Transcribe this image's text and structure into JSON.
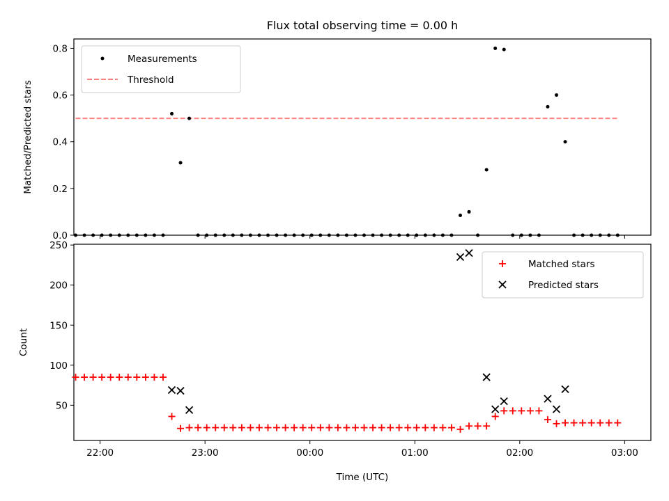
{
  "chart_data": [
    {
      "type": "scatter",
      "title": "Flux total observing time = 0.00 h",
      "xlabel": "",
      "ylabel": "Matched/Predicted stars",
      "xlim": [
        "21:45",
        "03:15"
      ],
      "ylim": [
        0,
        0.84
      ],
      "yticks": [
        0.0,
        0.2,
        0.4,
        0.6,
        0.8
      ],
      "ytick_labels": [
        "0.0",
        "0.2",
        "0.4",
        "0.6",
        "0.8"
      ],
      "legend": {
        "position": "top-left",
        "entries": [
          "Measurements",
          "Threshold"
        ]
      },
      "colors": {
        "measurements": "#000000",
        "threshold": "#ff7f7f"
      },
      "series": [
        {
          "name": "Measurements",
          "points": [
            {
              "x": "21:46",
              "y": 0
            },
            {
              "x": "21:51",
              "y": 0
            },
            {
              "x": "21:56",
              "y": 0
            },
            {
              "x": "22:01",
              "y": 0
            },
            {
              "x": "22:06",
              "y": 0
            },
            {
              "x": "22:11",
              "y": 0
            },
            {
              "x": "22:16",
              "y": 0
            },
            {
              "x": "22:21",
              "y": 0
            },
            {
              "x": "22:26",
              "y": 0
            },
            {
              "x": "22:31",
              "y": 0
            },
            {
              "x": "22:36",
              "y": 0
            },
            {
              "x": "22:41",
              "y": 0.52
            },
            {
              "x": "22:46",
              "y": 0.31
            },
            {
              "x": "22:51",
              "y": 0.5
            },
            {
              "x": "22:56",
              "y": 0
            },
            {
              "x": "23:01",
              "y": 0
            },
            {
              "x": "23:06",
              "y": 0
            },
            {
              "x": "23:11",
              "y": 0
            },
            {
              "x": "23:16",
              "y": 0
            },
            {
              "x": "23:21",
              "y": 0
            },
            {
              "x": "23:26",
              "y": 0
            },
            {
              "x": "23:31",
              "y": 0
            },
            {
              "x": "23:36",
              "y": 0
            },
            {
              "x": "23:41",
              "y": 0
            },
            {
              "x": "23:46",
              "y": 0
            },
            {
              "x": "23:51",
              "y": 0
            },
            {
              "x": "23:56",
              "y": 0
            },
            {
              "x": "00:01",
              "y": 0
            },
            {
              "x": "00:06",
              "y": 0
            },
            {
              "x": "00:11",
              "y": 0
            },
            {
              "x": "00:16",
              "y": 0
            },
            {
              "x": "00:21",
              "y": 0
            },
            {
              "x": "00:26",
              "y": 0
            },
            {
              "x": "00:31",
              "y": 0
            },
            {
              "x": "00:36",
              "y": 0
            },
            {
              "x": "00:41",
              "y": 0
            },
            {
              "x": "00:46",
              "y": 0
            },
            {
              "x": "00:51",
              "y": 0
            },
            {
              "x": "00:56",
              "y": 0
            },
            {
              "x": "01:01",
              "y": 0
            },
            {
              "x": "01:06",
              "y": 0
            },
            {
              "x": "01:11",
              "y": 0
            },
            {
              "x": "01:16",
              "y": 0
            },
            {
              "x": "01:21",
              "y": 0
            },
            {
              "x": "01:26",
              "y": 0.085
            },
            {
              "x": "01:31",
              "y": 0.1
            },
            {
              "x": "01:36",
              "y": 0
            },
            {
              "x": "01:41",
              "y": 0.28
            },
            {
              "x": "01:46",
              "y": 0.8
            },
            {
              "x": "01:51",
              "y": 0.795
            },
            {
              "x": "01:56",
              "y": 0
            },
            {
              "x": "02:01",
              "y": 0
            },
            {
              "x": "02:06",
              "y": 0
            },
            {
              "x": "02:11",
              "y": 0
            },
            {
              "x": "02:16",
              "y": 0.55
            },
            {
              "x": "02:21",
              "y": 0.6
            },
            {
              "x": "02:26",
              "y": 0.4
            },
            {
              "x": "02:31",
              "y": 0
            },
            {
              "x": "02:36",
              "y": 0
            },
            {
              "x": "02:41",
              "y": 0
            },
            {
              "x": "02:46",
              "y": 0
            },
            {
              "x": "02:51",
              "y": 0
            },
            {
              "x": "02:56",
              "y": 0
            }
          ]
        },
        {
          "name": "Threshold",
          "line": [
            {
              "x": "21:46",
              "y": 0.5
            },
            {
              "x": "02:56",
              "y": 0.5
            }
          ]
        }
      ]
    },
    {
      "type": "scatter",
      "title": "",
      "xlabel": "Time (UTC)",
      "ylabel": "Count",
      "xlim": [
        "21:45",
        "03:15"
      ],
      "ylim": [
        6,
        251
      ],
      "xticks": [
        "22:00",
        "23:00",
        "00:00",
        "01:00",
        "02:00",
        "03:00"
      ],
      "yticks": [
        50,
        100,
        150,
        200,
        250
      ],
      "legend": {
        "position": "top-right",
        "entries": [
          "Matched stars",
          "Predicted stars"
        ]
      },
      "colors": {
        "matched": "#ff0000",
        "predicted": "#000000"
      },
      "series": [
        {
          "name": "Matched stars",
          "points": [
            {
              "x": "21:46",
              "y": 85
            },
            {
              "x": "21:51",
              "y": 85
            },
            {
              "x": "21:56",
              "y": 85
            },
            {
              "x": "22:01",
              "y": 85
            },
            {
              "x": "22:06",
              "y": 85
            },
            {
              "x": "22:11",
              "y": 85
            },
            {
              "x": "22:16",
              "y": 85
            },
            {
              "x": "22:21",
              "y": 85
            },
            {
              "x": "22:26",
              "y": 85
            },
            {
              "x": "22:31",
              "y": 85
            },
            {
              "x": "22:36",
              "y": 85
            },
            {
              "x": "22:41",
              "y": 36
            },
            {
              "x": "22:46",
              "y": 21
            },
            {
              "x": "22:51",
              "y": 22
            },
            {
              "x": "22:56",
              "y": 22
            },
            {
              "x": "23:01",
              "y": 22
            },
            {
              "x": "23:06",
              "y": 22
            },
            {
              "x": "23:11",
              "y": 22
            },
            {
              "x": "23:16",
              "y": 22
            },
            {
              "x": "23:21",
              "y": 22
            },
            {
              "x": "23:26",
              "y": 22
            },
            {
              "x": "23:31",
              "y": 22
            },
            {
              "x": "23:36",
              "y": 22
            },
            {
              "x": "23:41",
              "y": 22
            },
            {
              "x": "23:46",
              "y": 22
            },
            {
              "x": "23:51",
              "y": 22
            },
            {
              "x": "23:56",
              "y": 22
            },
            {
              "x": "00:01",
              "y": 22
            },
            {
              "x": "00:06",
              "y": 22
            },
            {
              "x": "00:11",
              "y": 22
            },
            {
              "x": "00:16",
              "y": 22
            },
            {
              "x": "00:21",
              "y": 22
            },
            {
              "x": "00:26",
              "y": 22
            },
            {
              "x": "00:31",
              "y": 22
            },
            {
              "x": "00:36",
              "y": 22
            },
            {
              "x": "00:41",
              "y": 22
            },
            {
              "x": "00:46",
              "y": 22
            },
            {
              "x": "00:51",
              "y": 22
            },
            {
              "x": "00:56",
              "y": 22
            },
            {
              "x": "01:01",
              "y": 22
            },
            {
              "x": "01:06",
              "y": 22
            },
            {
              "x": "01:11",
              "y": 22
            },
            {
              "x": "01:16",
              "y": 22
            },
            {
              "x": "01:21",
              "y": 22
            },
            {
              "x": "01:26",
              "y": 20
            },
            {
              "x": "01:31",
              "y": 24
            },
            {
              "x": "01:36",
              "y": 24
            },
            {
              "x": "01:41",
              "y": 24
            },
            {
              "x": "01:46",
              "y": 36
            },
            {
              "x": "01:51",
              "y": 43
            },
            {
              "x": "01:56",
              "y": 43
            },
            {
              "x": "02:01",
              "y": 43
            },
            {
              "x": "02:06",
              "y": 43
            },
            {
              "x": "02:11",
              "y": 43
            },
            {
              "x": "02:16",
              "y": 32
            },
            {
              "x": "02:21",
              "y": 27
            },
            {
              "x": "02:26",
              "y": 28
            },
            {
              "x": "02:31",
              "y": 28
            },
            {
              "x": "02:36",
              "y": 28
            },
            {
              "x": "02:41",
              "y": 28
            },
            {
              "x": "02:46",
              "y": 28
            },
            {
              "x": "02:51",
              "y": 28
            },
            {
              "x": "02:56",
              "y": 28
            }
          ]
        },
        {
          "name": "Predicted stars",
          "points": [
            {
              "x": "22:41",
              "y": 69
            },
            {
              "x": "22:46",
              "y": 68
            },
            {
              "x": "22:51",
              "y": 44
            },
            {
              "x": "01:26",
              "y": 235
            },
            {
              "x": "01:31",
              "y": 240
            },
            {
              "x": "01:41",
              "y": 85
            },
            {
              "x": "01:46",
              "y": 45
            },
            {
              "x": "01:51",
              "y": 55
            },
            {
              "x": "02:16",
              "y": 58
            },
            {
              "x": "02:21",
              "y": 45
            },
            {
              "x": "02:26",
              "y": 70
            }
          ]
        }
      ]
    }
  ]
}
